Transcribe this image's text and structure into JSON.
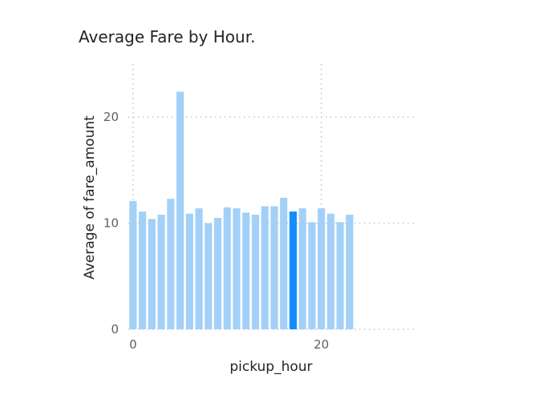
{
  "chart_data": {
    "type": "bar",
    "title": "Average Fare by Hour.",
    "xlabel": "pickup_hour",
    "ylabel": "Average of fare_amount",
    "x": [
      0,
      1,
      2,
      3,
      4,
      5,
      6,
      7,
      8,
      9,
      10,
      11,
      12,
      13,
      14,
      15,
      16,
      17,
      18,
      19,
      20,
      21,
      22,
      23
    ],
    "values": [
      12.1,
      11.1,
      10.4,
      10.8,
      12.3,
      22.4,
      10.9,
      11.4,
      10.0,
      10.5,
      11.5,
      11.4,
      11.0,
      10.8,
      11.6,
      11.6,
      12.4,
      11.1,
      11.4,
      10.1,
      11.4,
      10.9,
      10.1,
      10.8
    ],
    "highlighted_x": 17,
    "xlim": [
      -0.5,
      30
    ],
    "ylim": [
      0,
      25
    ],
    "x_ticks": [
      0,
      20
    ],
    "y_ticks": [
      0,
      10,
      20
    ],
    "x_tick_labels": [
      "0",
      "20"
    ],
    "y_tick_labels": [
      "0",
      "10",
      "20"
    ],
    "grid": true,
    "legend": "none",
    "colors": {
      "bar": "#a3d0f8",
      "highlight": "#118dff",
      "grid": "#c8c6c4",
      "tick_text": "#605e5c",
      "title_text": "#252423"
    }
  }
}
